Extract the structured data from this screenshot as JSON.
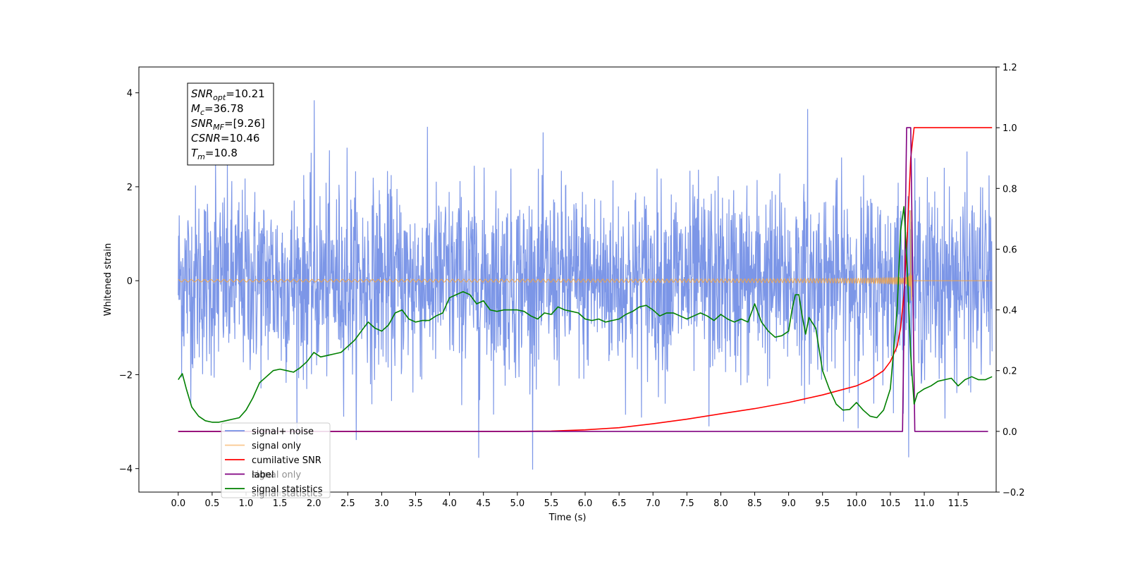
{
  "chart_data": {
    "type": "line",
    "xlabel": "Time (s)",
    "ylabel_left": "Whitened strain",
    "ylabel_right": "",
    "xlim": [
      -0.58,
      12.06
    ],
    "ylim_left": [
      -4.5,
      4.55
    ],
    "ylim_right": [
      -0.2,
      1.2
    ],
    "x_ticks": [
      0.0,
      0.5,
      1.0,
      1.5,
      2.0,
      2.5,
      3.0,
      3.5,
      4.0,
      4.5,
      5.0,
      5.5,
      6.0,
      6.5,
      7.0,
      7.5,
      8.0,
      8.5,
      9.0,
      9.5,
      10.0,
      10.5,
      11.0,
      11.5
    ],
    "x_tick_labels": [
      "0.0",
      "0.5",
      "1.0",
      "1.5",
      "2.0",
      "2.5",
      "3.0",
      "3.5",
      "4.0",
      "4.5",
      "5.0",
      "5.5",
      "6.0",
      "6.5",
      "7.0",
      "7.5",
      "8.0",
      "8.5",
      "9.0",
      "9.5",
      "10.0",
      "10.5",
      "11.0",
      "11.5"
    ],
    "y_ticks_left": [
      -4,
      -2,
      0,
      2,
      4
    ],
    "y_tick_labels_left": [
      "−4",
      "−2",
      "0",
      "2",
      "4"
    ],
    "y_ticks_right": [
      -0.2,
      0.0,
      0.2,
      0.4,
      0.6,
      0.8,
      1.0,
      1.2
    ],
    "y_tick_labels_right": [
      "−0.2",
      "0.0",
      "0.2",
      "0.4",
      "0.6",
      "0.8",
      "1.0",
      "1.2"
    ],
    "grid": false,
    "legend_position": "lower-left",
    "annotation_box": {
      "lines": [
        {
          "base": "SNR",
          "sub": "opt",
          "rest": "=10.21"
        },
        {
          "base": "M",
          "sub": "c",
          "rest": "=36.78"
        },
        {
          "base": "SNR",
          "sub": "MF",
          "rest": "=[9.26]"
        },
        {
          "base": "CSNR",
          "sub": "",
          "rest": "=10.46"
        },
        {
          "base": "T",
          "sub": "m",
          "rest": "=10.8"
        }
      ]
    },
    "series": [
      {
        "name": "signal+ noise",
        "axis": "left",
        "color": "#7590e6",
        "kind": "noise",
        "x_range": [
          0.0,
          12.0
        ],
        "approx_std": 1.0,
        "approx_extremes": [
          -4.1,
          4.1
        ]
      },
      {
        "name": "signal only",
        "axis": "left",
        "color": "#f5a442",
        "kind": "chirp",
        "x_range": [
          0.0,
          12.0
        ],
        "merger_time": 10.8,
        "peak_amplitude": 1.5
      },
      {
        "name": "cumilative SNR",
        "axis": "right",
        "color": "#ff0000",
        "x": [
          0.0,
          5.0,
          5.5,
          6.0,
          6.5,
          7.0,
          7.5,
          8.0,
          8.5,
          9.0,
          9.5,
          10.0,
          10.2,
          10.4,
          10.5,
          10.6,
          10.65,
          10.7,
          10.75,
          10.8,
          10.85,
          11.0,
          11.5,
          12.0
        ],
        "y": [
          0.0,
          0.0,
          0.001,
          0.005,
          0.012,
          0.025,
          0.04,
          0.058,
          0.075,
          0.095,
          0.12,
          0.15,
          0.17,
          0.2,
          0.23,
          0.28,
          0.34,
          0.45,
          0.65,
          0.9,
          1.0,
          1.0,
          1.0,
          1.0
        ]
      },
      {
        "name": "label",
        "axis": "right",
        "color": "#800080",
        "x": [
          0.0,
          10.68,
          10.74,
          10.8,
          10.86,
          11.94
        ],
        "y": [
          0.0,
          0.0,
          1.0,
          1.0,
          0.0,
          0.0
        ]
      },
      {
        "name": "signal statistics",
        "axis": "right",
        "color": "#008000",
        "x": [
          0.0,
          0.06,
          0.12,
          0.2,
          0.3,
          0.4,
          0.5,
          0.6,
          0.7,
          0.8,
          0.9,
          1.0,
          1.1,
          1.2,
          1.3,
          1.4,
          1.5,
          1.6,
          1.7,
          1.8,
          1.9,
          2.0,
          2.1,
          2.2,
          2.3,
          2.4,
          2.5,
          2.6,
          2.7,
          2.8,
          2.9,
          3.0,
          3.1,
          3.2,
          3.3,
          3.4,
          3.5,
          3.6,
          3.7,
          3.8,
          3.9,
          4.0,
          4.1,
          4.2,
          4.3,
          4.4,
          4.5,
          4.6,
          4.7,
          4.8,
          4.9,
          5.0,
          5.1,
          5.2,
          5.3,
          5.4,
          5.5,
          5.6,
          5.7,
          5.8,
          5.9,
          6.0,
          6.1,
          6.2,
          6.3,
          6.4,
          6.5,
          6.6,
          6.7,
          6.8,
          6.9,
          7.0,
          7.1,
          7.2,
          7.3,
          7.4,
          7.5,
          7.6,
          7.7,
          7.8,
          7.9,
          8.0,
          8.1,
          8.2,
          8.3,
          8.4,
          8.5,
          8.6,
          8.7,
          8.8,
          8.9,
          9.0,
          9.05,
          9.1,
          9.15,
          9.2,
          9.25,
          9.3,
          9.4,
          9.5,
          9.6,
          9.7,
          9.8,
          9.9,
          10.0,
          10.1,
          10.2,
          10.3,
          10.4,
          10.5,
          10.6,
          10.65,
          10.7,
          10.75,
          10.8,
          10.85,
          10.9,
          11.0,
          11.1,
          11.2,
          11.3,
          11.4,
          11.5,
          11.6,
          11.7,
          11.8,
          11.9,
          12.0
        ],
        "y": [
          0.17,
          0.19,
          0.14,
          0.08,
          0.05,
          0.035,
          0.03,
          0.03,
          0.035,
          0.04,
          0.045,
          0.07,
          0.11,
          0.16,
          0.18,
          0.2,
          0.205,
          0.2,
          0.195,
          0.21,
          0.23,
          0.26,
          0.245,
          0.25,
          0.255,
          0.26,
          0.28,
          0.3,
          0.33,
          0.36,
          0.34,
          0.33,
          0.35,
          0.39,
          0.4,
          0.37,
          0.36,
          0.365,
          0.365,
          0.38,
          0.39,
          0.44,
          0.45,
          0.46,
          0.45,
          0.42,
          0.43,
          0.4,
          0.395,
          0.4,
          0.4,
          0.4,
          0.395,
          0.38,
          0.37,
          0.39,
          0.385,
          0.41,
          0.4,
          0.395,
          0.39,
          0.37,
          0.365,
          0.37,
          0.36,
          0.365,
          0.37,
          0.385,
          0.395,
          0.41,
          0.415,
          0.4,
          0.38,
          0.39,
          0.39,
          0.38,
          0.37,
          0.38,
          0.39,
          0.38,
          0.365,
          0.385,
          0.37,
          0.36,
          0.37,
          0.36,
          0.42,
          0.36,
          0.33,
          0.31,
          0.315,
          0.33,
          0.4,
          0.45,
          0.45,
          0.38,
          0.32,
          0.375,
          0.34,
          0.2,
          0.14,
          0.09,
          0.07,
          0.072,
          0.095,
          0.07,
          0.05,
          0.045,
          0.07,
          0.14,
          0.4,
          0.66,
          0.74,
          0.53,
          0.25,
          0.09,
          0.125,
          0.14,
          0.15,
          0.165,
          0.17,
          0.175,
          0.15,
          0.17,
          0.18,
          0.17,
          0.17,
          0.18
        ]
      }
    ]
  },
  "legend": {
    "items": [
      {
        "label": "signal+ noise",
        "color": "#7590e6"
      },
      {
        "label": "signal only",
        "color": "#f5a442"
      },
      {
        "label": "cumilative SNR",
        "color": "#ff0000"
      },
      {
        "label": "label",
        "color": "#800080"
      },
      {
        "label": "signal statistics",
        "color": "#008000"
      }
    ],
    "ghost_items": [
      "signal only",
      "signal statistics"
    ]
  }
}
